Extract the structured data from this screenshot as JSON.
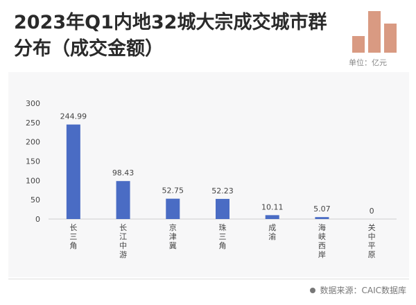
{
  "title": "2023年Q1内地32城大宗成交城市群分布（成交金额）",
  "unit_label": "单位：亿元",
  "source": "数据来源：CAIC数据库",
  "colors": {
    "bar": "#4a6cc4",
    "logo": "#d99a82",
    "axis": "#cfcfcf",
    "text": "#444444"
  },
  "chart_data": {
    "type": "bar",
    "title": "2023年Q1内地32城大宗成交城市群分布（成交金额）",
    "categories": [
      "长三角",
      "长江中游",
      "京津冀",
      "珠三角",
      "成渝",
      "海峡西岸",
      "关中平原"
    ],
    "values": [
      244.99,
      98.43,
      52.75,
      52.23,
      10.11,
      5.07,
      0
    ],
    "value_labels": [
      "244.99",
      "98.43",
      "52.75",
      "52.23",
      "10.11",
      "5.07",
      "0"
    ],
    "yticks": [
      0,
      50,
      100,
      150,
      200,
      250,
      300
    ],
    "ylim": [
      0,
      300
    ],
    "ylabel": "",
    "xlabel": "",
    "grid": false,
    "legend": "none"
  }
}
